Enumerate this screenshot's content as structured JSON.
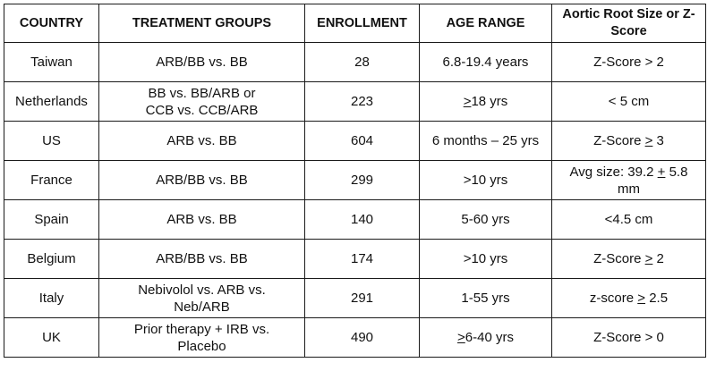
{
  "table": {
    "headers": [
      "COUNTRY",
      "TREATMENT GROUPS",
      "ENROLLMENT",
      "AGE RANGE",
      "Aortic Root Size or Z-Score"
    ],
    "rows": [
      {
        "country": "Taiwan",
        "groups": [
          "ARB/BB vs. BB"
        ],
        "enrollment": "28",
        "age": [
          {
            "t": "6.8-19.4 years"
          }
        ],
        "aortic": [
          {
            "t": "Z-Score > 2"
          }
        ]
      },
      {
        "country": "Netherlands",
        "groups": [
          "BB vs. BB/ARB or",
          "CCB vs. CCB/ARB"
        ],
        "enrollment": "223",
        "age": [
          {
            "t": ">",
            "u": true
          },
          {
            "t": "18 yrs"
          }
        ],
        "aortic": [
          {
            "t": "< 5 cm"
          }
        ]
      },
      {
        "country": "US",
        "groups": [
          "ARB vs. BB"
        ],
        "enrollment": "604",
        "age": [
          {
            "t": "6 months – 25 yrs"
          }
        ],
        "aortic": [
          {
            "t": "Z-Score "
          },
          {
            "t": ">",
            "u": true
          },
          {
            "t": " 3"
          }
        ]
      },
      {
        "country": "France",
        "groups": [
          "ARB/BB vs. BB"
        ],
        "enrollment": "299",
        "age": [
          {
            "t": ">10 yrs"
          }
        ],
        "aortic": [
          {
            "t": "Avg size: 39.2 "
          },
          {
            "t": "+",
            "u": true
          },
          {
            "t": " 5.8 mm"
          }
        ]
      },
      {
        "country": "Spain",
        "groups": [
          "ARB vs. BB"
        ],
        "enrollment": "140",
        "age": [
          {
            "t": "5-60 yrs"
          }
        ],
        "aortic": [
          {
            "t": "<4.5 cm"
          }
        ]
      },
      {
        "country": "Belgium",
        "groups": [
          "ARB/BB vs. BB"
        ],
        "enrollment": "174",
        "age": [
          {
            "t": ">10 yrs"
          }
        ],
        "aortic": [
          {
            "t": "Z-Score "
          },
          {
            "t": ">",
            "u": true
          },
          {
            "t": " 2"
          }
        ]
      },
      {
        "country": "Italy",
        "groups": [
          "Nebivolol vs. ARB vs.",
          "Neb/ARB"
        ],
        "enrollment": "291",
        "age": [
          {
            "t": "1-55 yrs"
          }
        ],
        "aortic": [
          {
            "t": "z-score "
          },
          {
            "t": ">",
            "u": true
          },
          {
            "t": " 2.5"
          }
        ]
      },
      {
        "country": "UK",
        "groups": [
          "Prior therapy + IRB vs.",
          "Placebo"
        ],
        "enrollment": "490",
        "age": [
          {
            "t": ">",
            "u": true
          },
          {
            "t": "6-40 yrs"
          }
        ],
        "aortic": [
          {
            "t": "Z-Score > 0"
          }
        ]
      }
    ]
  }
}
